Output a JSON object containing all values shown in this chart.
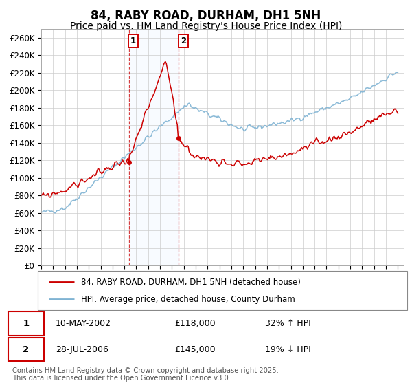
{
  "title": "84, RABY ROAD, DURHAM, DH1 5NH",
  "subtitle": "Price paid vs. HM Land Registry's House Price Index (HPI)",
  "ylim": [
    0,
    270000
  ],
  "yticks": [
    0,
    20000,
    40000,
    60000,
    80000,
    100000,
    120000,
    140000,
    160000,
    180000,
    200000,
    220000,
    240000,
    260000
  ],
  "sale1_date": "10-MAY-2002",
  "sale1_price": 118000,
  "sale1_hpi_rel": "32% ↑ HPI",
  "sale1_t": 2002.37,
  "sale2_date": "28-JUL-2006",
  "sale2_price": 145000,
  "sale2_hpi_rel": "19% ↓ HPI",
  "sale2_t": 2006.58,
  "legend_line1": "84, RABY ROAD, DURHAM, DH1 5NH (detached house)",
  "legend_line2": "HPI: Average price, detached house, County Durham",
  "footer": "Contains HM Land Registry data © Crown copyright and database right 2025.\nThis data is licensed under the Open Government Licence v3.0.",
  "sale_color": "#cc0000",
  "hpi_color": "#7fb3d3",
  "background_color": "#ffffff",
  "grid_color": "#cccccc",
  "shade_color": "#ddeeff",
  "title_fontsize": 12,
  "subtitle_fontsize": 10,
  "tick_fontsize": 8.5,
  "xstart": 1995,
  "xend": 2025
}
